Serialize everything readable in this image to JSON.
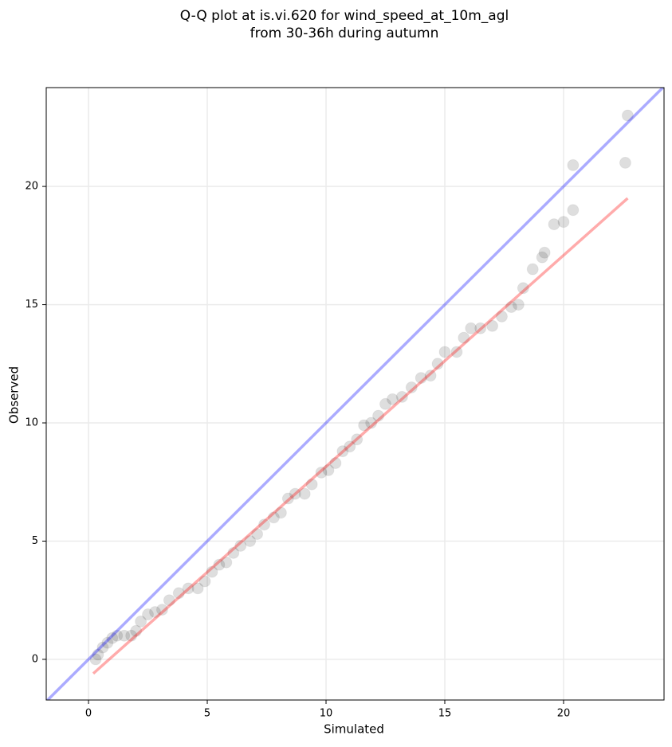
{
  "chart_data": {
    "type": "scatter",
    "title": [
      "Q-Q plot at is.vi.620 for wind_speed_at_10m_agl",
      "from 30-36h during autumn"
    ],
    "xlabel": "Simulated",
    "ylabel": "Observed",
    "xlim": [
      -1.78,
      24.23
    ],
    "ylim": [
      -1.72,
      24.18
    ],
    "xticks": [
      0,
      5,
      10,
      15,
      20
    ],
    "yticks": [
      0,
      5,
      10,
      15,
      20
    ],
    "grid": true,
    "series": [
      {
        "color": "#000000",
        "x": [
          0.3,
          0.4,
          0.6,
          0.8,
          1.0,
          1.2,
          1.5,
          1.8,
          2.0,
          2.2,
          2.5,
          2.8,
          3.1,
          3.4,
          3.8,
          4.2,
          4.6,
          4.9,
          5.2,
          5.5,
          5.8,
          6.1,
          6.4,
          6.8,
          7.1,
          7.4,
          7.8,
          8.1,
          8.4,
          8.7,
          9.1,
          9.4,
          9.8,
          10.1,
          10.4,
          10.7,
          11.0,
          11.3,
          11.6,
          11.9,
          12.2,
          12.5,
          12.8,
          13.2,
          13.6,
          14.0,
          14.4,
          14.7,
          15.0,
          15.5,
          15.8,
          16.1,
          16.5,
          17.0,
          17.4,
          17.8,
          18.1,
          18.3,
          18.7,
          19.1,
          19.2,
          19.6,
          20.0,
          20.4,
          20.4,
          22.6,
          22.7
        ],
        "values": [
          0,
          0.2,
          0.5,
          0.7,
          0.9,
          1,
          1,
          1,
          1.2,
          1.6,
          1.9,
          2,
          2.1,
          2.5,
          2.8,
          3,
          3,
          3.3,
          3.7,
          4,
          4.1,
          4.5,
          4.8,
          5,
          5.3,
          5.7,
          6,
          6.2,
          6.8,
          7,
          7,
          7.4,
          7.9,
          8,
          8.3,
          8.8,
          9,
          9.3,
          9.9,
          10,
          10.3,
          10.8,
          11,
          11.1,
          11.5,
          11.9,
          12,
          12.5,
          13,
          13,
          13.6,
          14,
          14,
          14.1,
          14.5,
          14.9,
          15,
          15.7,
          16.5,
          17,
          17.2,
          18.4,
          18.5,
          19,
          20.9,
          21,
          23
        ]
      }
    ],
    "identity_line": {
      "color": "#0000ff"
    },
    "fit_line": {
      "color": "#ff0000",
      "x": [
        0.2,
        22.7
      ],
      "values": [
        -0.6,
        19.5
      ]
    }
  }
}
